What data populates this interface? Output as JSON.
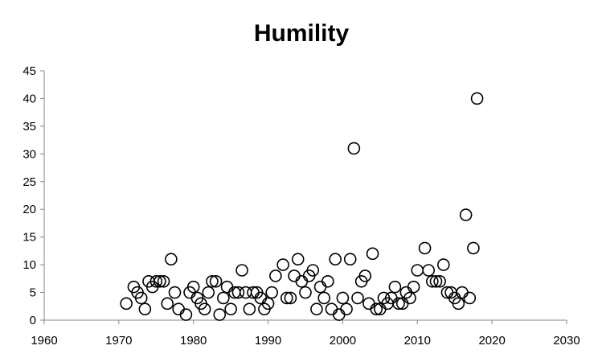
{
  "chart_data": {
    "type": "scatter",
    "title": "Humility",
    "xlabel": "",
    "ylabel": "",
    "xlim": [
      1960,
      2030
    ],
    "ylim": [
      0,
      45
    ],
    "x_ticks": [
      1960,
      1970,
      1980,
      1990,
      2000,
      2010,
      2020,
      2030
    ],
    "y_ticks": [
      0,
      5,
      10,
      15,
      20,
      25,
      30,
      35,
      40,
      45
    ],
    "grid": false,
    "legend": "none",
    "marker": "open-circle",
    "series": [
      {
        "points": [
          [
            1971,
            3
          ],
          [
            1972,
            6
          ],
          [
            1972.5,
            5
          ],
          [
            1973,
            4
          ],
          [
            1973.5,
            2
          ],
          [
            1974,
            7
          ],
          [
            1974.5,
            6
          ],
          [
            1975,
            7
          ],
          [
            1975.5,
            7
          ],
          [
            1976,
            7
          ],
          [
            1976.5,
            3
          ],
          [
            1977,
            11
          ],
          [
            1977.5,
            5
          ],
          [
            1978,
            2
          ],
          [
            1979,
            1
          ],
          [
            1979.5,
            5
          ],
          [
            1980,
            6
          ],
          [
            1980.5,
            4
          ],
          [
            1981,
            3
          ],
          [
            1981.5,
            2
          ],
          [
            1982,
            5
          ],
          [
            1982.5,
            7
          ],
          [
            1983,
            7
          ],
          [
            1983.5,
            1
          ],
          [
            1984,
            4
          ],
          [
            1984.5,
            6
          ],
          [
            1985,
            2
          ],
          [
            1985.5,
            5
          ],
          [
            1986,
            5
          ],
          [
            1986.5,
            9
          ],
          [
            1987,
            5
          ],
          [
            1987.5,
            2
          ],
          [
            1988,
            5
          ],
          [
            1988.5,
            5
          ],
          [
            1989,
            4
          ],
          [
            1989.5,
            2
          ],
          [
            1990,
            3
          ],
          [
            1990.5,
            5
          ],
          [
            1991,
            8
          ],
          [
            1992,
            10
          ],
          [
            1992.5,
            4
          ],
          [
            1993,
            4
          ],
          [
            1993.5,
            8
          ],
          [
            1994,
            11
          ],
          [
            1994.5,
            7
          ],
          [
            1995,
            5
          ],
          [
            1995.5,
            8
          ],
          [
            1996,
            9
          ],
          [
            1996.5,
            2
          ],
          [
            1997,
            6
          ],
          [
            1997.5,
            4
          ],
          [
            1998,
            7
          ],
          [
            1998.5,
            2
          ],
          [
            1999,
            11
          ],
          [
            1999.5,
            1
          ],
          [
            2000,
            4
          ],
          [
            2000.5,
            2
          ],
          [
            2001,
            11
          ],
          [
            2001.5,
            31
          ],
          [
            2002,
            4
          ],
          [
            2002.5,
            7
          ],
          [
            2003,
            8
          ],
          [
            2003.5,
            3
          ],
          [
            2004,
            12
          ],
          [
            2004.5,
            2
          ],
          [
            2005,
            2
          ],
          [
            2005.5,
            4
          ],
          [
            2006,
            3
          ],
          [
            2006.5,
            4
          ],
          [
            2007,
            6
          ],
          [
            2007.5,
            3
          ],
          [
            2008,
            3
          ],
          [
            2008.5,
            5
          ],
          [
            2009,
            4
          ],
          [
            2009.5,
            6
          ],
          [
            2010,
            9
          ],
          [
            2011,
            13
          ],
          [
            2011.5,
            9
          ],
          [
            2012,
            7
          ],
          [
            2012.5,
            7
          ],
          [
            2013,
            7
          ],
          [
            2013.5,
            10
          ],
          [
            2014,
            5
          ],
          [
            2014.5,
            5
          ],
          [
            2015,
            4
          ],
          [
            2015.5,
            3
          ],
          [
            2016,
            5
          ],
          [
            2016.5,
            19
          ],
          [
            2017,
            4
          ],
          [
            2017.5,
            13
          ],
          [
            2018,
            40
          ]
        ]
      }
    ]
  }
}
